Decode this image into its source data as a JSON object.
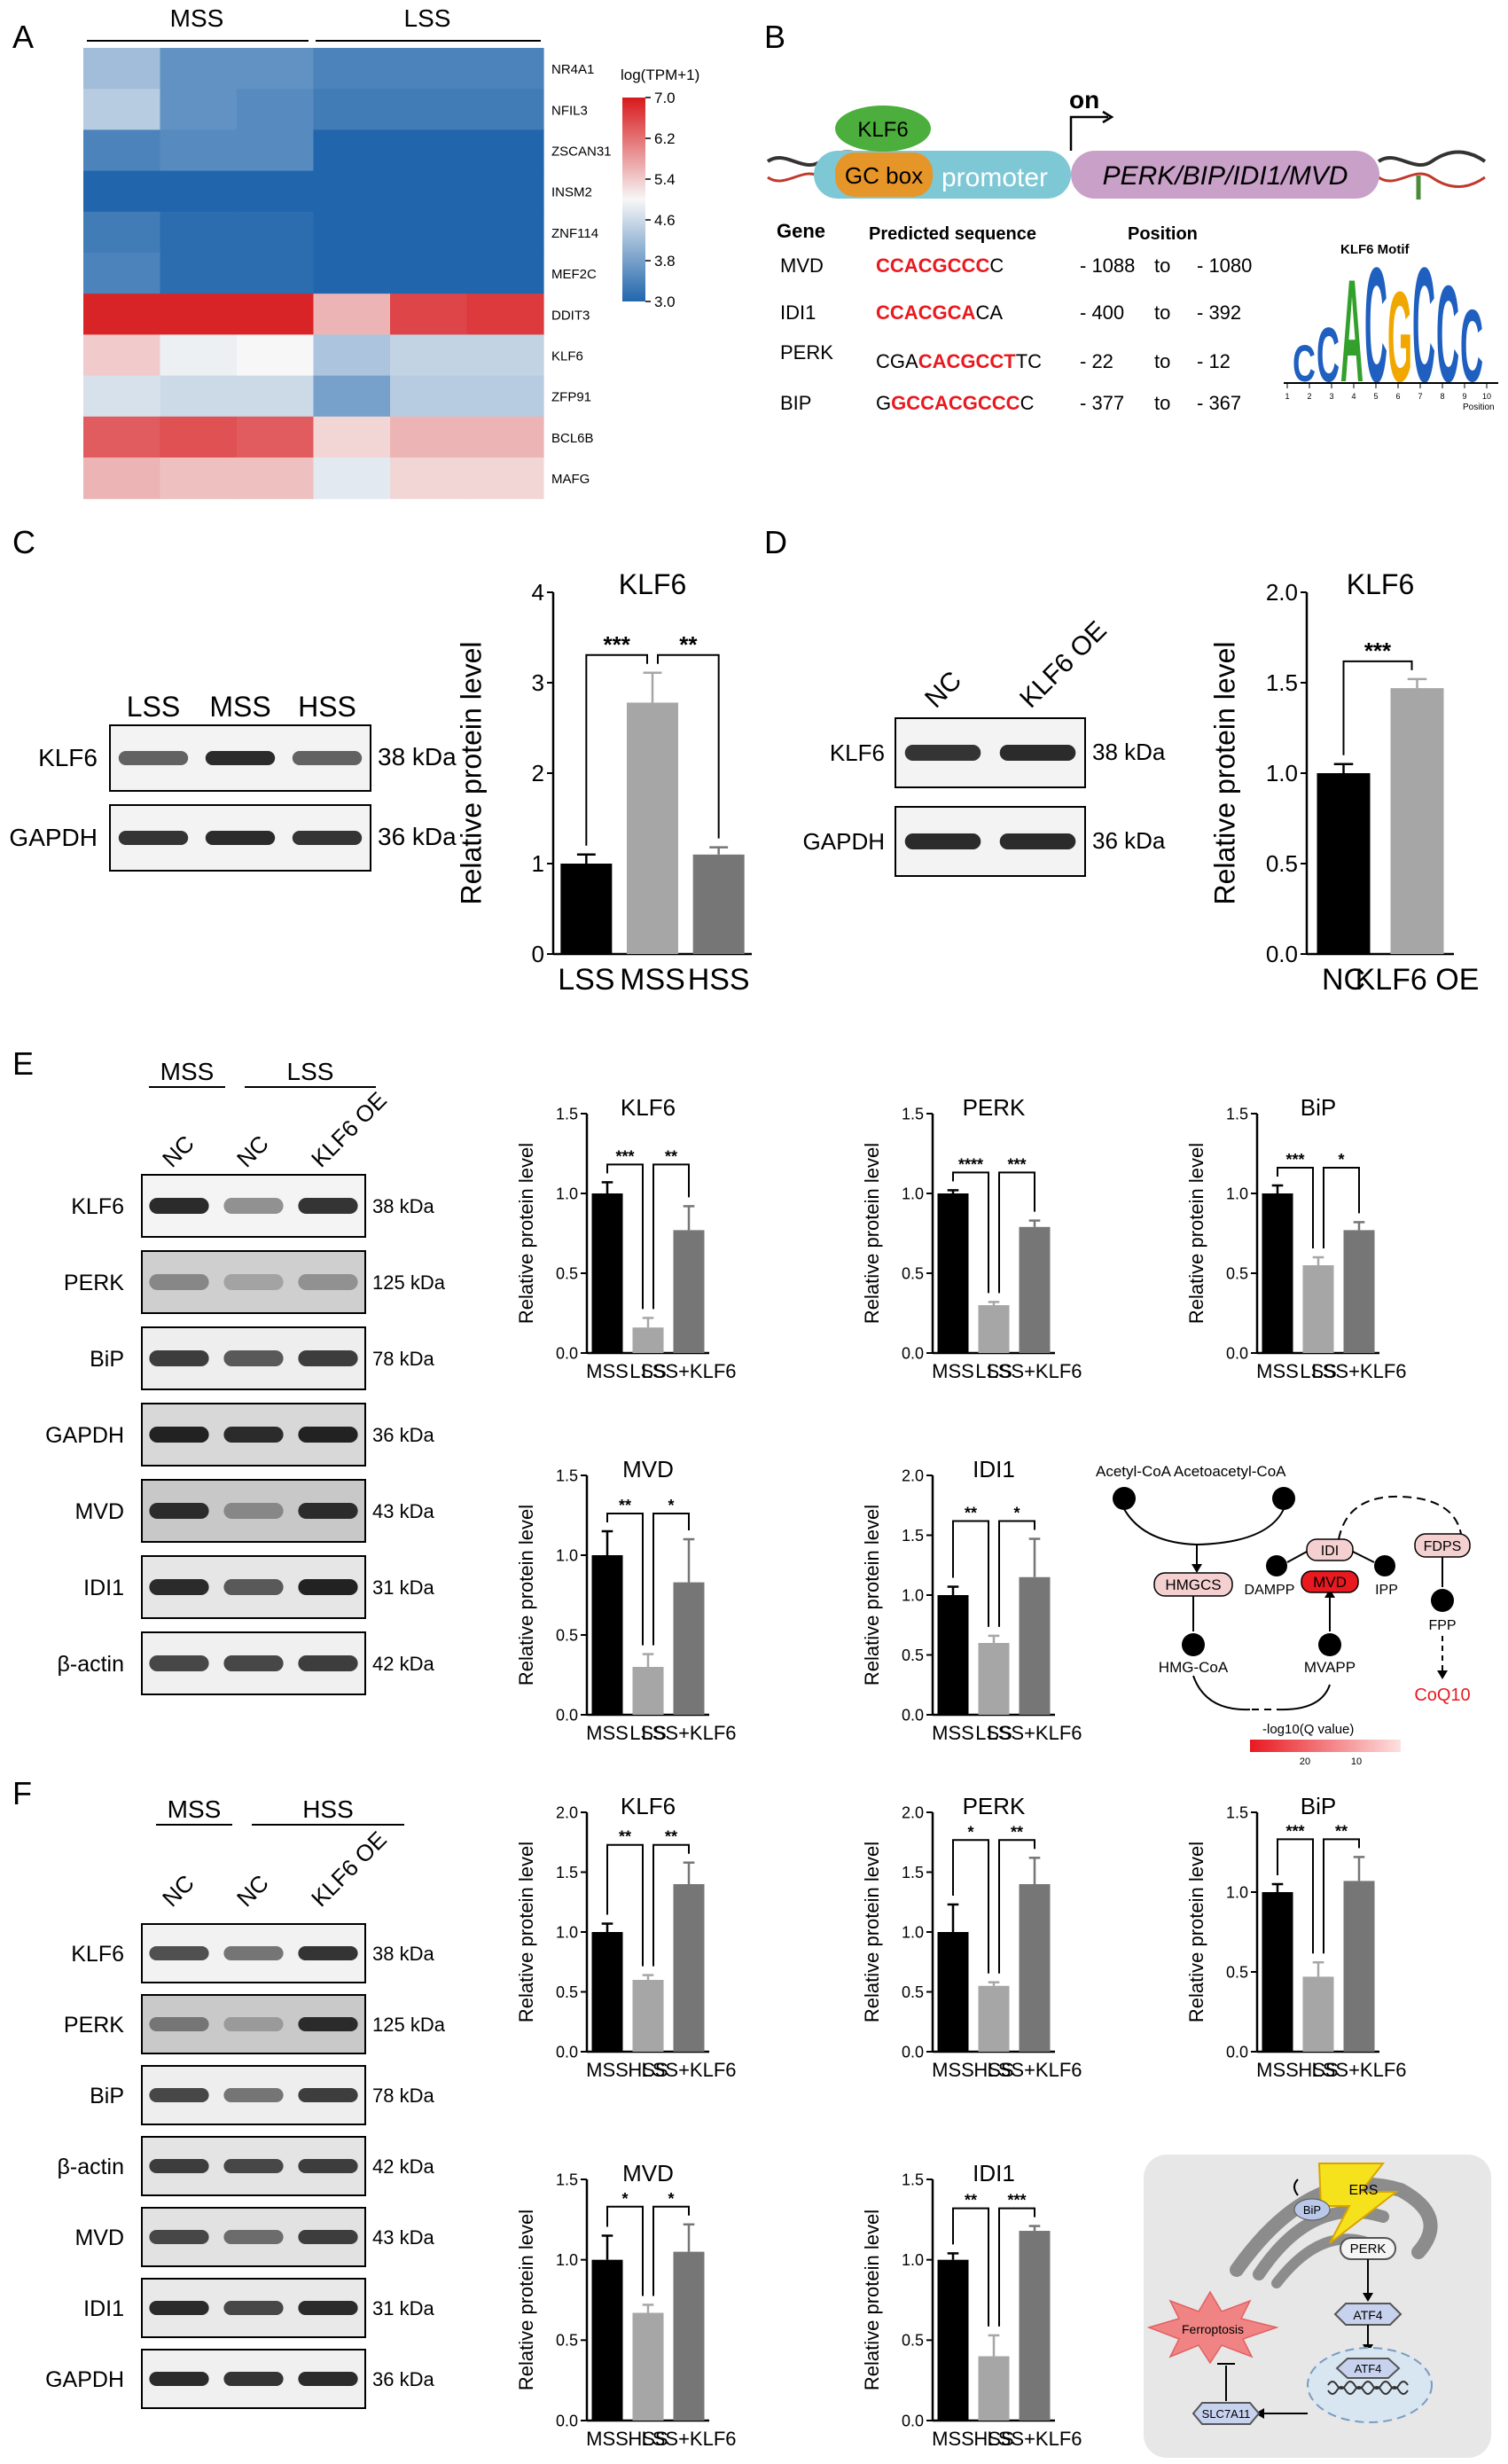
{
  "panels": {
    "A": "A",
    "B": "B",
    "C": "C",
    "D": "D",
    "E": "E",
    "F": "F"
  },
  "heatmap": {
    "group_labels": [
      "MSS",
      "LSS"
    ],
    "genes": [
      "NR4A1",
      "NFIL3",
      "ZSCAN31",
      "INSM2",
      "ZNF114",
      "MEF2C",
      "DDIT3",
      "KLF6",
      "ZFP91",
      "BCL6B",
      "MAFG"
    ],
    "values": [
      [
        4.2,
        3.6,
        3.6,
        3.4,
        3.4,
        3.4
      ],
      [
        4.4,
        3.6,
        3.5,
        3.3,
        3.3,
        3.3
      ],
      [
        3.4,
        3.5,
        3.5,
        3.0,
        3.0,
        3.0
      ],
      [
        3.0,
        3.0,
        3.0,
        3.0,
        3.0,
        3.0
      ],
      [
        3.3,
        3.1,
        3.1,
        3.0,
        3.0,
        3.0
      ],
      [
        3.4,
        3.1,
        3.1,
        3.0,
        3.0,
        3.0
      ],
      [
        6.9,
        6.9,
        6.9,
        5.6,
        6.6,
        6.7
      ],
      [
        5.4,
        4.9,
        5.0,
        4.3,
        4.5,
        4.5
      ],
      [
        4.7,
        4.6,
        4.6,
        3.8,
        4.4,
        4.4
      ],
      [
        6.4,
        6.5,
        6.4,
        5.3,
        5.6,
        5.6
      ],
      [
        5.6,
        5.5,
        5.5,
        4.8,
        5.3,
        5.3
      ]
    ],
    "legend_title": "log(TPM+1)",
    "legend_ticks": [
      "7.0",
      "6.2",
      "5.4",
      "4.6",
      "3.8",
      "3.0"
    ],
    "colors": {
      "low": "#2166ac",
      "mid": "#f7f7f7",
      "high": "#d7191c"
    }
  },
  "panelB": {
    "klf6": "KLF6",
    "on": "on",
    "gcbox": "GC box",
    "promoter": "promoter",
    "genes": "PERK/BIP/IDI1/MVD",
    "headers": [
      "Gene",
      "Predicted sequence",
      "Position"
    ],
    "rows": [
      {
        "gene": "MVD",
        "pre": "",
        "red": "CCACGCCC",
        "post": "C",
        "p1": "- 1088",
        "to": "to",
        "p2": "- 1080"
      },
      {
        "gene": "IDI1",
        "pre": "",
        "red": "CCACGCA",
        "post": "CA",
        "p1": "- 400",
        "to": "to",
        "p2": "- 392"
      },
      {
        "gene": "PERK",
        "pre": "CGA",
        "red": "CACGCCT",
        "post": "TC",
        "p1": "- 22",
        "to": "to",
        "p2": "- 12"
      },
      {
        "gene": "BIP",
        "pre": "G",
        "red": "GCCACGCCC",
        "post": "C",
        "p1": "- 377",
        "to": "to",
        "p2": "- 367"
      }
    ],
    "motif_title": "KLF6 Motif",
    "motif_letters": [
      "C",
      "C",
      "A",
      "C",
      "G",
      "C",
      "C",
      "C"
    ],
    "motif_axis": "Position"
  },
  "blotC": {
    "lanes": [
      "LSS",
      "MSS",
      "HSS"
    ],
    "rows": [
      {
        "label": "KLF6",
        "kda": "38 kDa",
        "intens": [
          0.55,
          0.85,
          0.55
        ]
      },
      {
        "label": "GAPDH",
        "kda": "36 kDa",
        "intens": [
          0.8,
          0.85,
          0.8
        ]
      }
    ]
  },
  "blotD": {
    "lanes": [
      "NC",
      "KLF6 OE"
    ],
    "rows": [
      {
        "label": "KLF6",
        "kda": "38 kDa",
        "intens": [
          0.8,
          0.85
        ]
      },
      {
        "label": "GAPDH",
        "kda": "36 kDa",
        "intens": [
          0.85,
          0.85
        ]
      }
    ]
  },
  "blotE": {
    "groups": [
      "MSS",
      "LSS"
    ],
    "lanes": [
      "NC",
      "NC",
      "KLF6 OE"
    ],
    "rows": [
      {
        "label": "KLF6",
        "kda": "38 kDa",
        "intens": [
          0.85,
          0.3,
          0.8
        ],
        "bg": "#f4f4f4"
      },
      {
        "label": "PERK",
        "kda": "125 kDa",
        "intens": [
          0.35,
          0.2,
          0.3
        ],
        "bg": "#cfcfcf"
      },
      {
        "label": "BiP",
        "kda": "78 kDa",
        "intens": [
          0.75,
          0.6,
          0.75
        ],
        "bg": "#eeeeee"
      },
      {
        "label": "GAPDH",
        "kda": "36 kDa",
        "intens": [
          0.9,
          0.85,
          0.9
        ],
        "bg": "#d8d8d8"
      },
      {
        "label": "MVD",
        "kda": "43 kDa",
        "intens": [
          0.85,
          0.35,
          0.85
        ],
        "bg": "#c8c8c8"
      },
      {
        "label": "IDI1",
        "kda": "31 kDa",
        "intens": [
          0.85,
          0.6,
          0.9
        ],
        "bg": "#e6e6e6"
      },
      {
        "label": "β-actin",
        "kda": "42 kDa",
        "intens": [
          0.7,
          0.7,
          0.75
        ],
        "bg": "#f0f0f0"
      }
    ]
  },
  "blotF": {
    "groups": [
      "MSS",
      "HSS"
    ],
    "lanes": [
      "NC",
      "NC",
      "KLF6 OE"
    ],
    "rows": [
      {
        "label": "KLF6",
        "kda": "38 kDa",
        "intens": [
          0.65,
          0.45,
          0.8
        ],
        "bg": "#f2f2f2"
      },
      {
        "label": "PERK",
        "kda": "125 kDa",
        "intens": [
          0.45,
          0.25,
          0.85
        ],
        "bg": "#c9c9c9"
      },
      {
        "label": "BiP",
        "kda": "78 kDa",
        "intens": [
          0.7,
          0.45,
          0.75
        ],
        "bg": "#eeeeee"
      },
      {
        "label": "β-actin",
        "kda": "42 kDa",
        "intens": [
          0.75,
          0.7,
          0.75
        ],
        "bg": "#e4e4e4"
      },
      {
        "label": "MVD",
        "kda": "43 kDa",
        "intens": [
          0.7,
          0.5,
          0.75
        ],
        "bg": "#e2e2e2"
      },
      {
        "label": "IDI1",
        "kda": "31 kDa",
        "intens": [
          0.85,
          0.7,
          0.85
        ],
        "bg": "#e9e9e9"
      },
      {
        "label": "GAPDH",
        "kda": "36 kDa",
        "intens": [
          0.85,
          0.8,
          0.85
        ],
        "bg": "#f0f0f0"
      }
    ]
  },
  "pathway": {
    "acetyl": "Acetyl-CoA Acetoacetyl-CoA",
    "hmgcs": "HMGCS",
    "hmgcoa": "HMG-CoA",
    "mvapp": "MVAPP",
    "mvd": "MVD",
    "dampp": "DAMPP",
    "idi": "IDI",
    "ipp": "IPP",
    "fdps": "FDPS",
    "fpp": "FPP",
    "coq10": "CoQ10",
    "legend": "-log10(Q value)",
    "legend_ticks": [
      "20",
      "10"
    ]
  },
  "schematic": {
    "ers": "ERS",
    "bip": "BiP",
    "perk": "PERK",
    "atf4": "ATF4",
    "atf4_nuc": "ATF4",
    "ferro": "Ferroptosis",
    "slc": "SLC7A11"
  },
  "colors": {
    "black": "#000000",
    "light": "#a6a6a6",
    "dark": "#767676",
    "red": "#e8191f"
  },
  "chart_data": [
    {
      "type": "heatmap",
      "panel": "A",
      "legend_title": "log(TPM+1)"
    },
    {
      "type": "bar",
      "panel": "C",
      "title": "KLF6",
      "ylabel": "Relative protein level",
      "ylim": [
        0,
        4
      ],
      "yticks": [
        0,
        1,
        2,
        3,
        4
      ],
      "tick_labels": [
        "0",
        "1",
        "2",
        "3",
        "4"
      ],
      "categories": [
        "LSS",
        "MSS",
        "HSS"
      ],
      "values": [
        1.0,
        2.78,
        1.1
      ],
      "errors": [
        0.1,
        0.33,
        0.08
      ],
      "colors": [
        "#000000",
        "#a6a6a6",
        "#767676"
      ],
      "sig": [
        {
          "from": 0,
          "to": 1,
          "label": "***"
        },
        {
          "from": 1,
          "to": 2,
          "label": "**"
        }
      ]
    },
    {
      "type": "bar",
      "panel": "D",
      "title": "KLF6",
      "ylabel": "Relative protein level",
      "ylim": [
        0,
        2
      ],
      "yticks": [
        0,
        0.5,
        1,
        1.5,
        2
      ],
      "tick_labels": [
        "0.0",
        "0.5",
        "1.0",
        "1.5",
        "2.0"
      ],
      "categories": [
        "NC",
        "KLF6 OE"
      ],
      "values": [
        1.0,
        1.47
      ],
      "errors": [
        0.05,
        0.05
      ],
      "colors": [
        "#000000",
        "#a6a6a6"
      ],
      "sig": [
        {
          "from": 0,
          "to": 1,
          "label": "***"
        }
      ]
    },
    {
      "type": "bar",
      "panel": "E",
      "title": "KLF6",
      "ylabel": "Relative protein level",
      "ylim": [
        0,
        1.5
      ],
      "yticks": [
        0,
        0.5,
        1,
        1.5
      ],
      "tick_labels": [
        "0.0",
        "0.5",
        "1.0",
        "1.5"
      ],
      "categories": [
        "MSS",
        "LSS",
        "LSS+KLF6"
      ],
      "values": [
        1.0,
        0.16,
        0.77
      ],
      "errors": [
        0.07,
        0.06,
        0.15
      ],
      "colors": [
        "#000000",
        "#a6a6a6",
        "#767676"
      ],
      "sig": [
        {
          "from": 0,
          "to": 1,
          "label": "***"
        },
        {
          "from": 1,
          "to": 2,
          "label": "**"
        }
      ]
    },
    {
      "type": "bar",
      "panel": "E",
      "title": "PERK",
      "ylabel": "Relative protein level",
      "ylim": [
        0,
        1.5
      ],
      "yticks": [
        0,
        0.5,
        1,
        1.5
      ],
      "tick_labels": [
        "0.0",
        "0.5",
        "1.0",
        "1.5"
      ],
      "categories": [
        "MSS",
        "LSS",
        "LSS+KLF6"
      ],
      "values": [
        1.0,
        0.3,
        0.79
      ],
      "errors": [
        0.02,
        0.02,
        0.04
      ],
      "colors": [
        "#000000",
        "#a6a6a6",
        "#767676"
      ],
      "sig": [
        {
          "from": 0,
          "to": 1,
          "label": "****"
        },
        {
          "from": 1,
          "to": 2,
          "label": "***"
        }
      ]
    },
    {
      "type": "bar",
      "panel": "E",
      "title": "BiP",
      "ylabel": "Relative protein level",
      "ylim": [
        0,
        1.5
      ],
      "yticks": [
        0,
        0.5,
        1,
        1.5
      ],
      "tick_labels": [
        "0.0",
        "0.5",
        "1.0",
        "1.5"
      ],
      "categories": [
        "MSS",
        "LSS",
        "LSS+KLF6"
      ],
      "values": [
        1.0,
        0.55,
        0.77
      ],
      "errors": [
        0.05,
        0.05,
        0.05
      ],
      "colors": [
        "#000000",
        "#a6a6a6",
        "#767676"
      ],
      "sig": [
        {
          "from": 0,
          "to": 1,
          "label": "***"
        },
        {
          "from": 1,
          "to": 2,
          "label": "*"
        }
      ]
    },
    {
      "type": "bar",
      "panel": "E",
      "title": "MVD",
      "ylabel": "Relative protein level",
      "ylim": [
        0,
        1.5
      ],
      "yticks": [
        0,
        0.5,
        1,
        1.5
      ],
      "tick_labels": [
        "0.0",
        "0.5",
        "1.0",
        "1.5"
      ],
      "categories": [
        "MSS",
        "LSS",
        "LSS+KLF6"
      ],
      "values": [
        1.0,
        0.3,
        0.83
      ],
      "errors": [
        0.15,
        0.08,
        0.27
      ],
      "colors": [
        "#000000",
        "#a6a6a6",
        "#767676"
      ],
      "sig": [
        {
          "from": 0,
          "to": 1,
          "label": "**"
        },
        {
          "from": 1,
          "to": 2,
          "label": "*"
        }
      ]
    },
    {
      "type": "bar",
      "panel": "E",
      "title": "IDI1",
      "ylabel": "Relative protein level",
      "ylim": [
        0,
        2
      ],
      "yticks": [
        0,
        0.5,
        1,
        1.5,
        2
      ],
      "tick_labels": [
        "0.0",
        "0.5",
        "1.0",
        "1.5",
        "2.0"
      ],
      "categories": [
        "MSS",
        "LSS",
        "LSS+KLF6"
      ],
      "values": [
        1.0,
        0.6,
        1.15
      ],
      "errors": [
        0.07,
        0.06,
        0.32
      ],
      "colors": [
        "#000000",
        "#a6a6a6",
        "#767676"
      ],
      "sig": [
        {
          "from": 0,
          "to": 1,
          "label": "**"
        },
        {
          "from": 1,
          "to": 2,
          "label": "*"
        }
      ]
    },
    {
      "type": "bar",
      "panel": "F",
      "title": "KLF6",
      "ylabel": "Relative protein level",
      "ylim": [
        0,
        2
      ],
      "yticks": [
        0,
        0.5,
        1,
        1.5,
        2
      ],
      "tick_labels": [
        "0.0",
        "0.5",
        "1.0",
        "1.5",
        "2.0"
      ],
      "categories": [
        "MSS",
        "HSS",
        "LSS+KLF6"
      ],
      "values": [
        1.0,
        0.6,
        1.4
      ],
      "errors": [
        0.07,
        0.04,
        0.18
      ],
      "colors": [
        "#000000",
        "#a6a6a6",
        "#767676"
      ],
      "sig": [
        {
          "from": 0,
          "to": 1,
          "label": "**"
        },
        {
          "from": 1,
          "to": 2,
          "label": "**"
        }
      ]
    },
    {
      "type": "bar",
      "panel": "F",
      "title": "PERK",
      "ylabel": "Relative protein level",
      "ylim": [
        0,
        2
      ],
      "yticks": [
        0,
        0.5,
        1,
        1.5,
        2
      ],
      "tick_labels": [
        "0.0",
        "0.5",
        "1.0",
        "1.5",
        "2.0"
      ],
      "categories": [
        "MSS",
        "HSS",
        "LSS+KLF6"
      ],
      "values": [
        1.0,
        0.55,
        1.4
      ],
      "errors": [
        0.23,
        0.03,
        0.22
      ],
      "colors": [
        "#000000",
        "#a6a6a6",
        "#767676"
      ],
      "sig": [
        {
          "from": 0,
          "to": 1,
          "label": "*"
        },
        {
          "from": 1,
          "to": 2,
          "label": "**"
        }
      ]
    },
    {
      "type": "bar",
      "panel": "F",
      "title": "BiP",
      "ylabel": "Relative protein level",
      "ylim": [
        0,
        1.5
      ],
      "yticks": [
        0,
        0.5,
        1,
        1.5
      ],
      "tick_labels": [
        "0.0",
        "0.5",
        "1.0",
        "1.5"
      ],
      "categories": [
        "MSS",
        "HSS",
        "LSS+KLF6"
      ],
      "values": [
        1.0,
        0.47,
        1.07
      ],
      "errors": [
        0.05,
        0.09,
        0.15
      ],
      "colors": [
        "#000000",
        "#a6a6a6",
        "#767676"
      ],
      "sig": [
        {
          "from": 0,
          "to": 1,
          "label": "***"
        },
        {
          "from": 1,
          "to": 2,
          "label": "**"
        }
      ]
    },
    {
      "type": "bar",
      "panel": "F",
      "title": "MVD",
      "ylabel": "Relative protein level",
      "ylim": [
        0,
        1.5
      ],
      "yticks": [
        0,
        0.5,
        1,
        1.5
      ],
      "tick_labels": [
        "0.0",
        "0.5",
        "1.0",
        "1.5"
      ],
      "categories": [
        "MSS",
        "HSS",
        "LSS+KLF6"
      ],
      "values": [
        1.0,
        0.67,
        1.05
      ],
      "errors": [
        0.15,
        0.05,
        0.17
      ],
      "colors": [
        "#000000",
        "#a6a6a6",
        "#767676"
      ],
      "sig": [
        {
          "from": 0,
          "to": 1,
          "label": "*"
        },
        {
          "from": 1,
          "to": 2,
          "label": "*"
        }
      ]
    },
    {
      "type": "bar",
      "panel": "F",
      "title": "IDI1",
      "ylabel": "Relative protein level",
      "ylim": [
        0,
        1.5
      ],
      "yticks": [
        0,
        0.5,
        1,
        1.5
      ],
      "tick_labels": [
        "0.0",
        "0.5",
        "1.0",
        "1.5"
      ],
      "categories": [
        "MSS",
        "HSS",
        "LSS+KLF6"
      ],
      "values": [
        1.0,
        0.4,
        1.18
      ],
      "errors": [
        0.04,
        0.13,
        0.03
      ],
      "colors": [
        "#000000",
        "#a6a6a6",
        "#767676"
      ],
      "sig": [
        {
          "from": 0,
          "to": 1,
          "label": "**"
        },
        {
          "from": 1,
          "to": 2,
          "label": "***"
        }
      ]
    }
  ]
}
